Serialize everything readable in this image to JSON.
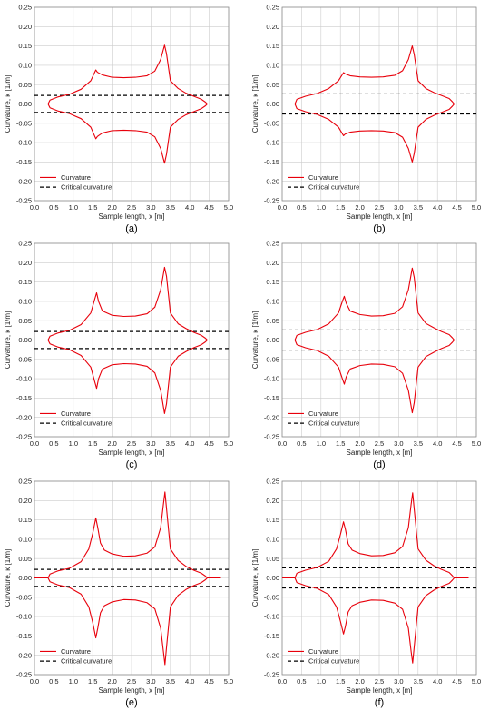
{
  "axes": {
    "xlabel": "Sample length, x [m]",
    "ylabel": "Curvature, κ [1/m]",
    "x_ticks": [
      "0.0",
      "0.5",
      "1.0",
      "1.5",
      "2.0",
      "2.5",
      "3.0",
      "3.5",
      "4.0",
      "4.5",
      "5.0"
    ],
    "y_ticks": [
      "0.25",
      "0.20",
      "0.15",
      "0.10",
      "0.05",
      "0.00",
      "-0.05",
      "-0.10",
      "-0.15",
      "-0.20",
      "-0.25"
    ]
  },
  "legend": {
    "curvature": "Curvature",
    "critical": "Critical curvature"
  },
  "colors": {
    "curvature": "#e8000b",
    "critical": "#000000",
    "grid": "#cccccc"
  },
  "chart_data": [
    {
      "type": "line",
      "panel_label": "(a)",
      "xlim": [
        0,
        5
      ],
      "ylim": [
        -0.25,
        0.25
      ],
      "grid": true,
      "legend_position": "bottom-left",
      "critical_curvature": 0.022,
      "series": [
        {
          "name": "Curvature",
          "x": [
            0.0,
            0.35,
            0.4,
            0.6,
            0.9,
            1.2,
            1.45,
            1.58,
            1.62,
            1.75,
            2.0,
            2.3,
            2.6,
            2.9,
            3.1,
            3.25,
            3.35,
            3.4,
            3.5,
            3.7,
            3.9,
            4.1,
            4.3,
            4.4,
            4.45,
            4.8
          ],
          "y": [
            0.0,
            0.0,
            0.01,
            0.018,
            0.025,
            0.038,
            0.06,
            0.088,
            0.082,
            0.075,
            0.069,
            0.068,
            0.069,
            0.073,
            0.085,
            0.115,
            0.152,
            0.13,
            0.06,
            0.04,
            0.028,
            0.02,
            0.012,
            0.005,
            0.0,
            0.0
          ]
        },
        {
          "name": "Curvature",
          "x": [
            0.0,
            0.35,
            0.4,
            0.6,
            0.9,
            1.2,
            1.45,
            1.58,
            1.62,
            1.75,
            2.0,
            2.3,
            2.6,
            2.9,
            3.1,
            3.25,
            3.35,
            3.4,
            3.5,
            3.7,
            3.9,
            4.1,
            4.3,
            4.4,
            4.45,
            4.8
          ],
          "y": [
            0.0,
            0.0,
            -0.01,
            -0.018,
            -0.025,
            -0.038,
            -0.06,
            -0.09,
            -0.084,
            -0.075,
            -0.069,
            -0.068,
            -0.069,
            -0.073,
            -0.085,
            -0.115,
            -0.153,
            -0.13,
            -0.06,
            -0.04,
            -0.028,
            -0.02,
            -0.012,
            -0.005,
            0.0,
            0.0
          ]
        }
      ]
    },
    {
      "type": "line",
      "panel_label": "(b)",
      "xlim": [
        0,
        5
      ],
      "ylim": [
        -0.25,
        0.25
      ],
      "grid": true,
      "legend_position": "bottom-left",
      "critical_curvature": 0.026,
      "series": [
        {
          "name": "Curvature",
          "x": [
            0.0,
            0.33,
            0.38,
            0.6,
            0.9,
            1.2,
            1.45,
            1.58,
            1.62,
            1.75,
            2.0,
            2.3,
            2.6,
            2.9,
            3.1,
            3.25,
            3.35,
            3.4,
            3.5,
            3.7,
            3.9,
            4.1,
            4.3,
            4.38,
            4.43,
            4.8
          ],
          "y": [
            0.0,
            0.0,
            0.012,
            0.02,
            0.027,
            0.04,
            0.06,
            0.081,
            0.078,
            0.073,
            0.07,
            0.069,
            0.07,
            0.074,
            0.086,
            0.115,
            0.15,
            0.128,
            0.06,
            0.04,
            0.03,
            0.022,
            0.014,
            0.006,
            0.0,
            0.0
          ]
        },
        {
          "name": "Curvature",
          "x": [
            0.0,
            0.33,
            0.38,
            0.6,
            0.9,
            1.2,
            1.45,
            1.58,
            1.62,
            1.75,
            2.0,
            2.3,
            2.6,
            2.9,
            3.1,
            3.25,
            3.35,
            3.4,
            3.5,
            3.7,
            3.9,
            4.1,
            4.3,
            4.38,
            4.43,
            4.8
          ],
          "y": [
            0.0,
            0.0,
            -0.012,
            -0.02,
            -0.027,
            -0.04,
            -0.06,
            -0.082,
            -0.078,
            -0.073,
            -0.07,
            -0.069,
            -0.07,
            -0.074,
            -0.086,
            -0.115,
            -0.15,
            -0.128,
            -0.06,
            -0.04,
            -0.03,
            -0.022,
            -0.014,
            -0.006,
            0.0,
            0.0
          ]
        }
      ]
    },
    {
      "type": "line",
      "panel_label": "(c)",
      "xlim": [
        0,
        5
      ],
      "ylim": [
        -0.25,
        0.25
      ],
      "grid": true,
      "legend_position": "bottom-left",
      "critical_curvature": 0.022,
      "series": [
        {
          "name": "Curvature",
          "x": [
            0.0,
            0.35,
            0.4,
            0.6,
            0.9,
            1.2,
            1.45,
            1.55,
            1.6,
            1.65,
            1.75,
            2.0,
            2.3,
            2.6,
            2.9,
            3.1,
            3.25,
            3.35,
            3.4,
            3.5,
            3.7,
            3.9,
            4.1,
            4.3,
            4.4,
            4.45,
            4.8
          ],
          "y": [
            0.0,
            0.0,
            0.01,
            0.018,
            0.025,
            0.04,
            0.07,
            0.105,
            0.122,
            0.1,
            0.075,
            0.064,
            0.061,
            0.062,
            0.068,
            0.085,
            0.13,
            0.188,
            0.165,
            0.07,
            0.042,
            0.03,
            0.02,
            0.012,
            0.005,
            0.0,
            0.0
          ]
        },
        {
          "name": "Curvature",
          "x": [
            0.0,
            0.35,
            0.4,
            0.6,
            0.9,
            1.2,
            1.45,
            1.55,
            1.6,
            1.65,
            1.75,
            2.0,
            2.3,
            2.6,
            2.9,
            3.1,
            3.25,
            3.35,
            3.4,
            3.5,
            3.7,
            3.9,
            4.1,
            4.3,
            4.4,
            4.45,
            4.8
          ],
          "y": [
            0.0,
            0.0,
            -0.01,
            -0.018,
            -0.025,
            -0.04,
            -0.07,
            -0.107,
            -0.125,
            -0.1,
            -0.075,
            -0.064,
            -0.061,
            -0.062,
            -0.068,
            -0.085,
            -0.13,
            -0.19,
            -0.165,
            -0.07,
            -0.042,
            -0.03,
            -0.02,
            -0.012,
            -0.005,
            0.0,
            0.0
          ]
        }
      ]
    },
    {
      "type": "line",
      "panel_label": "(d)",
      "xlim": [
        0,
        5
      ],
      "ylim": [
        -0.25,
        0.25
      ],
      "grid": true,
      "legend_position": "bottom-left",
      "critical_curvature": 0.026,
      "series": [
        {
          "name": "Curvature",
          "x": [
            0.0,
            0.33,
            0.38,
            0.6,
            0.9,
            1.2,
            1.45,
            1.55,
            1.6,
            1.65,
            1.75,
            2.0,
            2.3,
            2.6,
            2.9,
            3.1,
            3.25,
            3.35,
            3.4,
            3.5,
            3.7,
            3.9,
            4.1,
            4.3,
            4.38,
            4.43,
            4.8
          ],
          "y": [
            0.0,
            0.0,
            0.012,
            0.02,
            0.027,
            0.042,
            0.07,
            0.1,
            0.113,
            0.095,
            0.075,
            0.066,
            0.062,
            0.063,
            0.069,
            0.086,
            0.13,
            0.186,
            0.162,
            0.07,
            0.043,
            0.032,
            0.022,
            0.014,
            0.006,
            0.0,
            0.0
          ]
        },
        {
          "name": "Curvature",
          "x": [
            0.0,
            0.33,
            0.38,
            0.6,
            0.9,
            1.2,
            1.45,
            1.55,
            1.6,
            1.65,
            1.75,
            2.0,
            2.3,
            2.6,
            2.9,
            3.1,
            3.25,
            3.35,
            3.4,
            3.5,
            3.7,
            3.9,
            4.1,
            4.3,
            4.38,
            4.43,
            4.8
          ],
          "y": [
            0.0,
            0.0,
            -0.012,
            -0.02,
            -0.027,
            -0.042,
            -0.07,
            -0.1,
            -0.114,
            -0.095,
            -0.075,
            -0.066,
            -0.062,
            -0.063,
            -0.069,
            -0.086,
            -0.13,
            -0.188,
            -0.162,
            -0.07,
            -0.043,
            -0.032,
            -0.022,
            -0.014,
            -0.006,
            0.0,
            0.0
          ]
        }
      ]
    },
    {
      "type": "line",
      "panel_label": "(e)",
      "xlim": [
        0,
        5
      ],
      "ylim": [
        -0.25,
        0.25
      ],
      "grid": true,
      "legend_position": "bottom-left",
      "critical_curvature": 0.022,
      "series": [
        {
          "name": "Curvature",
          "x": [
            0.0,
            0.35,
            0.4,
            0.6,
            0.9,
            1.2,
            1.4,
            1.5,
            1.58,
            1.63,
            1.7,
            1.8,
            2.0,
            2.3,
            2.6,
            2.9,
            3.1,
            3.25,
            3.32,
            3.36,
            3.4,
            3.5,
            3.7,
            3.9,
            4.1,
            4.3,
            4.4,
            4.45,
            4.8
          ],
          "y": [
            0.0,
            0.0,
            0.01,
            0.018,
            0.025,
            0.042,
            0.075,
            0.115,
            0.155,
            0.13,
            0.09,
            0.072,
            0.062,
            0.056,
            0.057,
            0.064,
            0.08,
            0.13,
            0.19,
            0.222,
            0.18,
            0.075,
            0.045,
            0.03,
            0.02,
            0.012,
            0.005,
            0.0,
            0.0
          ]
        },
        {
          "name": "Curvature",
          "x": [
            0.0,
            0.35,
            0.4,
            0.6,
            0.9,
            1.2,
            1.4,
            1.5,
            1.58,
            1.63,
            1.7,
            1.8,
            2.0,
            2.3,
            2.6,
            2.9,
            3.1,
            3.25,
            3.32,
            3.36,
            3.4,
            3.5,
            3.7,
            3.9,
            4.1,
            4.3,
            4.4,
            4.45,
            4.8
          ],
          "y": [
            0.0,
            0.0,
            -0.01,
            -0.018,
            -0.025,
            -0.042,
            -0.075,
            -0.115,
            -0.155,
            -0.13,
            -0.09,
            -0.072,
            -0.062,
            -0.056,
            -0.057,
            -0.064,
            -0.08,
            -0.13,
            -0.19,
            -0.224,
            -0.18,
            -0.075,
            -0.045,
            -0.03,
            -0.02,
            -0.012,
            -0.005,
            0.0,
            0.0
          ]
        }
      ]
    },
    {
      "type": "line",
      "panel_label": "(f)",
      "xlim": [
        0,
        5
      ],
      "ylim": [
        -0.25,
        0.25
      ],
      "grid": true,
      "legend_position": "bottom-left",
      "critical_curvature": 0.026,
      "series": [
        {
          "name": "Curvature",
          "x": [
            0.0,
            0.33,
            0.38,
            0.6,
            0.9,
            1.2,
            1.4,
            1.5,
            1.58,
            1.63,
            1.7,
            1.8,
            2.0,
            2.3,
            2.6,
            2.9,
            3.1,
            3.25,
            3.32,
            3.36,
            3.4,
            3.5,
            3.7,
            3.9,
            4.1,
            4.3,
            4.38,
            4.43,
            4.8
          ],
          "y": [
            0.0,
            0.0,
            0.012,
            0.02,
            0.027,
            0.043,
            0.075,
            0.112,
            0.145,
            0.125,
            0.088,
            0.072,
            0.063,
            0.057,
            0.058,
            0.065,
            0.081,
            0.13,
            0.19,
            0.22,
            0.178,
            0.075,
            0.046,
            0.032,
            0.022,
            0.014,
            0.006,
            0.0,
            0.0
          ]
        },
        {
          "name": "Curvature",
          "x": [
            0.0,
            0.33,
            0.38,
            0.6,
            0.9,
            1.2,
            1.4,
            1.5,
            1.58,
            1.63,
            1.7,
            1.8,
            2.0,
            2.3,
            2.6,
            2.9,
            3.1,
            3.25,
            3.32,
            3.36,
            3.4,
            3.5,
            3.7,
            3.9,
            4.1,
            4.3,
            4.38,
            4.43,
            4.8
          ],
          "y": [
            0.0,
            0.0,
            -0.012,
            -0.02,
            -0.027,
            -0.043,
            -0.075,
            -0.112,
            -0.145,
            -0.125,
            -0.088,
            -0.072,
            -0.063,
            -0.057,
            -0.058,
            -0.065,
            -0.081,
            -0.13,
            -0.19,
            -0.22,
            -0.178,
            -0.075,
            -0.046,
            -0.032,
            -0.022,
            -0.014,
            -0.006,
            0.0,
            0.0
          ]
        }
      ]
    }
  ]
}
